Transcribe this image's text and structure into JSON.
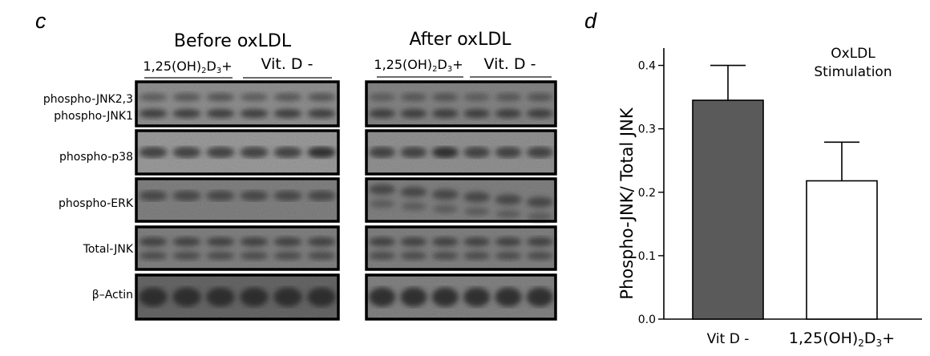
{
  "panel_c": {
    "letter": "c",
    "groups": [
      {
        "title": "Before oxLDL",
        "subgroups": [
          {
            "label_main": "1,25(OH)",
            "sub1": "2",
            "mid": "D",
            "sub2": "3",
            "tail": "+"
          },
          {
            "label_main": "Vit. D -",
            "sub1": "",
            "mid": "",
            "sub2": "",
            "tail": ""
          }
        ]
      },
      {
        "title": "After oxLDL",
        "subgroups": [
          {
            "label_main": "1,25(OH)",
            "sub1": "2",
            "mid": "D",
            "sub2": "3",
            "tail": "+"
          },
          {
            "label_main": "Vit. D -",
            "sub1": "",
            "mid": "",
            "sub2": "",
            "tail": ""
          }
        ]
      }
    ],
    "blots": [
      {
        "label": "phospho-JNK2,3",
        "label2": "phospho-JNK1"
      },
      {
        "label": "phospho-p38",
        "label2": ""
      },
      {
        "label": "phospho-ERK",
        "label2": ""
      },
      {
        "label": "Total-JNK",
        "label2": ""
      },
      {
        "label": "β–Actin",
        "label2": ""
      }
    ]
  },
  "chart_data": {
    "type": "bar",
    "panel_letter": "d",
    "categories": [
      "Vit D -",
      "1,25(OH)2D3+"
    ],
    "category_parts": [
      {
        "main": "Vit D -",
        "sub1": "",
        "mid": "",
        "sub2": "",
        "tail": ""
      },
      {
        "main": "1,25(OH)",
        "sub1": "2",
        "mid": "D",
        "sub2": "3",
        "tail": "+"
      }
    ],
    "values": [
      0.345,
      0.218
    ],
    "errors": [
      0.055,
      0.061
    ],
    "bar_colors": [
      "#5a5a5a",
      "#ffffff"
    ],
    "ylabel": "Phospho-JNK/ Total JNK",
    "ylim": [
      0,
      0.45
    ],
    "yticks": [
      0.0,
      0.1,
      0.2,
      0.3,
      0.4
    ],
    "ytick_labels": [
      "0.0",
      "0.1",
      "0.2",
      "0.3",
      "0.4"
    ],
    "annotation_line1": "OxLDL",
    "annotation_line2": "Stimulation",
    "grid": false
  }
}
